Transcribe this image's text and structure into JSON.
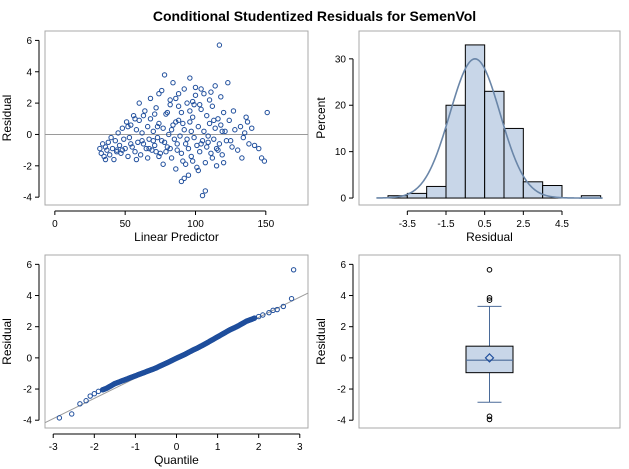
{
  "title": "Conditional Studentized Residuals for SemenVol",
  "chart_data": [
    {
      "type": "scatter",
      "panel": "residual-vs-predicted",
      "xlabel": "Linear Predictor",
      "ylabel": "Residual",
      "xlim": [
        -7,
        180
      ],
      "ylim": [
        -4.5,
        6.6
      ],
      "xticks": [
        0,
        50,
        100,
        150
      ],
      "yticks": [
        -4,
        -2,
        0,
        2,
        4,
        6
      ],
      "reference_line_y": 0,
      "points": [
        [
          32,
          -0.9
        ],
        [
          33,
          -1.2
        ],
        [
          34,
          -0.6
        ],
        [
          35,
          -1.4
        ],
        [
          36,
          -0.8
        ],
        [
          37,
          -1.0
        ],
        [
          38,
          -0.5
        ],
        [
          39,
          -1.3
        ],
        [
          40,
          -0.2
        ],
        [
          41,
          -0.9
        ],
        [
          42,
          -1.6
        ],
        [
          43,
          -0.4
        ],
        [
          44,
          -1.1
        ],
        [
          45,
          0.1
        ],
        [
          46,
          -0.7
        ],
        [
          47,
          -1.2
        ],
        [
          48,
          0.4
        ],
        [
          49,
          -0.3
        ],
        [
          50,
          -0.9
        ],
        [
          51,
          0.8
        ],
        [
          52,
          -1.4
        ],
        [
          53,
          -0.2
        ],
        [
          54,
          0.6
        ],
        [
          55,
          -0.8
        ],
        [
          56,
          1.2
        ],
        [
          57,
          -1.1
        ],
        [
          58,
          0.3
        ],
        [
          59,
          -0.5
        ],
        [
          60,
          0.9
        ],
        [
          61,
          -1.3
        ],
        [
          62,
          0.1
        ],
        [
          63,
          -0.6
        ],
        [
          64,
          1.5
        ],
        [
          65,
          -0.9
        ],
        [
          66,
          0.5
        ],
        [
          67,
          -0.3
        ],
        [
          68,
          1.0
        ],
        [
          69,
          -1.0
        ],
        [
          70,
          0.2
        ],
        [
          71,
          -0.7
        ],
        [
          72,
          1.7
        ],
        [
          73,
          -0.2
        ],
        [
          74,
          0.7
        ],
        [
          75,
          -1.2
        ],
        [
          76,
          2.8
        ],
        [
          77,
          0.4
        ],
        [
          78,
          -0.5
        ],
        [
          79,
          1.3
        ],
        [
          80,
          -0.8
        ],
        [
          81,
          0.0
        ],
        [
          82,
          1.9
        ],
        [
          83,
          -1.5
        ],
        [
          84,
          0.6
        ],
        [
          85,
          -0.3
        ],
        [
          86,
          2.3
        ],
        [
          87,
          -1.0
        ],
        [
          88,
          0.9
        ],
        [
          89,
          -0.1
        ],
        [
          90,
          1.4
        ],
        [
          91,
          -1.7
        ],
        [
          92,
          0.3
        ],
        [
          93,
          -0.6
        ],
        [
          94,
          2.0
        ],
        [
          95,
          -0.9
        ],
        [
          96,
          0.8
        ],
        [
          97,
          -1.4
        ],
        [
          98,
          1.1
        ],
        [
          99,
          -0.2
        ],
        [
          100,
          2.5
        ],
        [
          101,
          -0.7
        ],
        [
          102,
          0.5
        ],
        [
          103,
          -1.1
        ],
        [
          104,
          1.6
        ],
        [
          105,
          -0.4
        ],
        [
          106,
          0.2
        ],
        [
          107,
          -1.8
        ],
        [
          108,
          1.2
        ],
        [
          109,
          -0.5
        ],
        [
          110,
          0.7
        ],
        [
          111,
          -1.2
        ],
        [
          112,
          1.8
        ],
        [
          113,
          -0.3
        ],
        [
          114,
          0.4
        ],
        [
          115,
          -0.9
        ],
        [
          116,
          1.0
        ],
        [
          117,
          -0.6
        ],
        [
          118,
          0.6
        ],
        [
          119,
          -1.3
        ],
        [
          120,
          1.4
        ],
        [
          122,
          -0.4
        ],
        [
          124,
          0.9
        ],
        [
          126,
          -0.8
        ],
        [
          128,
          0.3
        ],
        [
          130,
          -1.0
        ],
        [
          132,
          0.5
        ],
        [
          134,
          -0.2
        ],
        [
          136,
          1.1
        ],
        [
          138,
          -0.6
        ],
        [
          140,
          0.4
        ],
        [
          142,
          -0.7
        ],
        [
          36,
          -1.6
        ],
        [
          44,
          -1.0
        ],
        [
          52,
          0.5
        ],
        [
          58,
          -1.6
        ],
        [
          60,
          2.0
        ],
        [
          62,
          -0.4
        ],
        [
          66,
          -1.5
        ],
        [
          68,
          2.3
        ],
        [
          70,
          -0.4
        ],
        [
          72,
          -1.1
        ],
        [
          74,
          2.6
        ],
        [
          77,
          -1.9
        ],
        [
          78,
          3.8
        ],
        [
          80,
          1.4
        ],
        [
          82,
          -0.9
        ],
        [
          84,
          3.3
        ],
        [
          86,
          -2.2
        ],
        [
          88,
          1.8
        ],
        [
          90,
          -1.2
        ],
        [
          92,
          2.9
        ],
        [
          94,
          -0.3
        ],
        [
          95,
          -2.6
        ],
        [
          96,
          1.5
        ],
        [
          98,
          -1.7
        ],
        [
          100,
          3.0
        ],
        [
          102,
          -2.3
        ],
        [
          103,
          1.9
        ],
        [
          104,
          -0.6
        ],
        [
          105,
          -3.9
        ],
        [
          106,
          2.6
        ],
        [
          107,
          -3.6
        ],
        [
          108,
          -0.8
        ],
        [
          110,
          2.2
        ],
        [
          112,
          -1.5
        ],
        [
          113,
          0.9
        ],
        [
          114,
          3.1
        ],
        [
          116,
          -1.0
        ],
        [
          117,
          5.7
        ],
        [
          118,
          2.4
        ],
        [
          120,
          -1.8
        ],
        [
          121,
          0.2
        ],
        [
          123,
          3.3
        ],
        [
          125,
          -0.4
        ],
        [
          127,
          1.5
        ],
        [
          133,
          -1.5
        ],
        [
          135,
          0.1
        ],
        [
          137,
          0.8
        ],
        [
          145,
          -0.9
        ],
        [
          147,
          -1.5
        ],
        [
          149,
          -1.7
        ],
        [
          151,
          1.4
        ],
        [
          90,
          -3.0
        ],
        [
          88,
          2.6
        ],
        [
          92,
          -2.8
        ],
        [
          96,
          3.6
        ],
        [
          98,
          2.1
        ],
        [
          104,
          2.9
        ],
        [
          74,
          -1.4
        ],
        [
          82,
          2.2
        ],
        [
          86,
          0.8
        ],
        [
          76,
          -0.4
        ],
        [
          79,
          -1.1
        ],
        [
          83,
          0.3
        ],
        [
          87,
          -0.6
        ],
        [
          91,
          0.7
        ],
        [
          93,
          -1.9
        ],
        [
          97,
          0.2
        ],
        [
          99,
          1.9
        ],
        [
          101,
          -2.1
        ],
        [
          109,
          -0.1
        ],
        [
          111,
          2.7
        ],
        [
          115,
          -2.0
        ],
        [
          119,
          0.2
        ],
        [
          48,
          -1.0
        ],
        [
          54,
          -0.6
        ],
        [
          57,
          1.0
        ],
        [
          63,
          1.2
        ],
        [
          67,
          -0.9
        ],
        [
          71,
          1.3
        ],
        [
          73,
          0.5
        ]
      ]
    },
    {
      "type": "histogram",
      "panel": "residual-histogram",
      "xlabel": "Residual",
      "ylabel": "Percent",
      "xlim": [
        -6.0,
        7.5
      ],
      "ylim": [
        -1.5,
        36
      ],
      "xticks": [
        -3.5,
        -1.5,
        0.5,
        2.5,
        4.5
      ],
      "yticks": [
        0,
        10,
        20,
        30
      ],
      "bin_width": 1,
      "bins": [
        {
          "left": -4.5,
          "right": -3.5,
          "percent": 0.5
        },
        {
          "left": -3.5,
          "right": -2.5,
          "percent": 1.0
        },
        {
          "left": -2.5,
          "right": -1.5,
          "percent": 2.5
        },
        {
          "left": -1.5,
          "right": -0.5,
          "percent": 20.0
        },
        {
          "left": -0.5,
          "right": 0.5,
          "percent": 33.0
        },
        {
          "left": 0.5,
          "right": 1.5,
          "percent": 23.0
        },
        {
          "left": 1.5,
          "right": 2.5,
          "percent": 15.0
        },
        {
          "left": 2.5,
          "right": 3.5,
          "percent": 3.5
        },
        {
          "left": 3.5,
          "right": 4.5,
          "percent": 2.7
        },
        {
          "left": 4.5,
          "right": 5.5,
          "percent": 0.0
        },
        {
          "left": 5.5,
          "right": 6.5,
          "percent": 0.5
        }
      ],
      "normal_curve": {
        "mean": 0.0,
        "sd": 1.3,
        "peak_percent": 30.0
      }
    },
    {
      "type": "qqplot",
      "panel": "normal-quantile-plot",
      "xlabel": "Quantile",
      "ylabel": "Residual",
      "xlim": [
        -3.2,
        3.2
      ],
      "ylim": [
        -4.5,
        6.6
      ],
      "xticks": [
        -3,
        -2,
        -1,
        0,
        1,
        2,
        3
      ],
      "yticks": [
        -4,
        -2,
        0,
        2,
        4,
        6
      ],
      "reference_line": {
        "intercept": 0.0,
        "slope": 1.3
      },
      "points": [
        [
          -2.85,
          -3.85
        ],
        [
          -2.55,
          -3.6
        ],
        [
          -2.35,
          -2.95
        ],
        [
          -2.2,
          -2.75
        ],
        [
          -2.1,
          -2.45
        ],
        [
          -2.0,
          -2.3
        ],
        [
          -1.9,
          -2.15
        ],
        [
          -1.8,
          -2.05
        ],
        [
          -1.7,
          -1.95
        ],
        [
          -1.6,
          -1.8
        ],
        [
          -1.5,
          -1.65
        ],
        [
          -1.4,
          -1.55
        ],
        [
          -1.3,
          -1.45
        ],
        [
          -1.2,
          -1.35
        ],
        [
          -1.1,
          -1.25
        ],
        [
          -1.0,
          -1.15
        ],
        [
          -0.9,
          -1.05
        ],
        [
          -0.8,
          -0.95
        ],
        [
          -0.7,
          -0.85
        ],
        [
          -0.6,
          -0.75
        ],
        [
          -0.5,
          -0.65
        ],
        [
          -0.4,
          -0.52
        ],
        [
          -0.3,
          -0.4
        ],
        [
          -0.2,
          -0.28
        ],
        [
          -0.1,
          -0.15
        ],
        [
          0.0,
          -0.02
        ],
        [
          0.1,
          0.1
        ],
        [
          0.2,
          0.22
        ],
        [
          0.3,
          0.36
        ],
        [
          0.4,
          0.5
        ],
        [
          0.5,
          0.62
        ],
        [
          0.6,
          0.76
        ],
        [
          0.7,
          0.9
        ],
        [
          0.8,
          1.05
        ],
        [
          0.9,
          1.2
        ],
        [
          1.0,
          1.35
        ],
        [
          1.1,
          1.5
        ],
        [
          1.2,
          1.65
        ],
        [
          1.3,
          1.8
        ],
        [
          1.4,
          1.92
        ],
        [
          1.5,
          2.05
        ],
        [
          1.6,
          2.2
        ],
        [
          1.7,
          2.35
        ],
        [
          1.8,
          2.45
        ],
        [
          1.9,
          2.55
        ],
        [
          2.0,
          2.65
        ],
        [
          2.1,
          2.75
        ],
        [
          2.25,
          2.9
        ],
        [
          2.35,
          3.05
        ],
        [
          2.45,
          3.1
        ],
        [
          2.6,
          3.3
        ],
        [
          2.8,
          3.8
        ],
        [
          2.85,
          5.65
        ]
      ]
    },
    {
      "type": "boxplot",
      "panel": "residual-boxplot",
      "ylabel": "Residual",
      "ylim": [
        -4.5,
        6.6
      ],
      "yticks": [
        -4,
        -2,
        0,
        2,
        4,
        6
      ],
      "q1": -0.95,
      "median": -0.15,
      "q3": 0.75,
      "mean": 0.0,
      "whisker_low": -2.85,
      "whisker_high": 3.3,
      "outliers": [
        5.65,
        3.85,
        3.7,
        -3.75,
        -3.95
      ]
    }
  ],
  "colors": {
    "marker": "#1f4e9c",
    "bar_fill": "#c8d6e8",
    "bar_stroke": "#000000",
    "curve": "#6a86a8",
    "ref_line": "#9a9a9a",
    "box_fill": "#c8d6e8",
    "box_stroke": "#4a6a98"
  }
}
